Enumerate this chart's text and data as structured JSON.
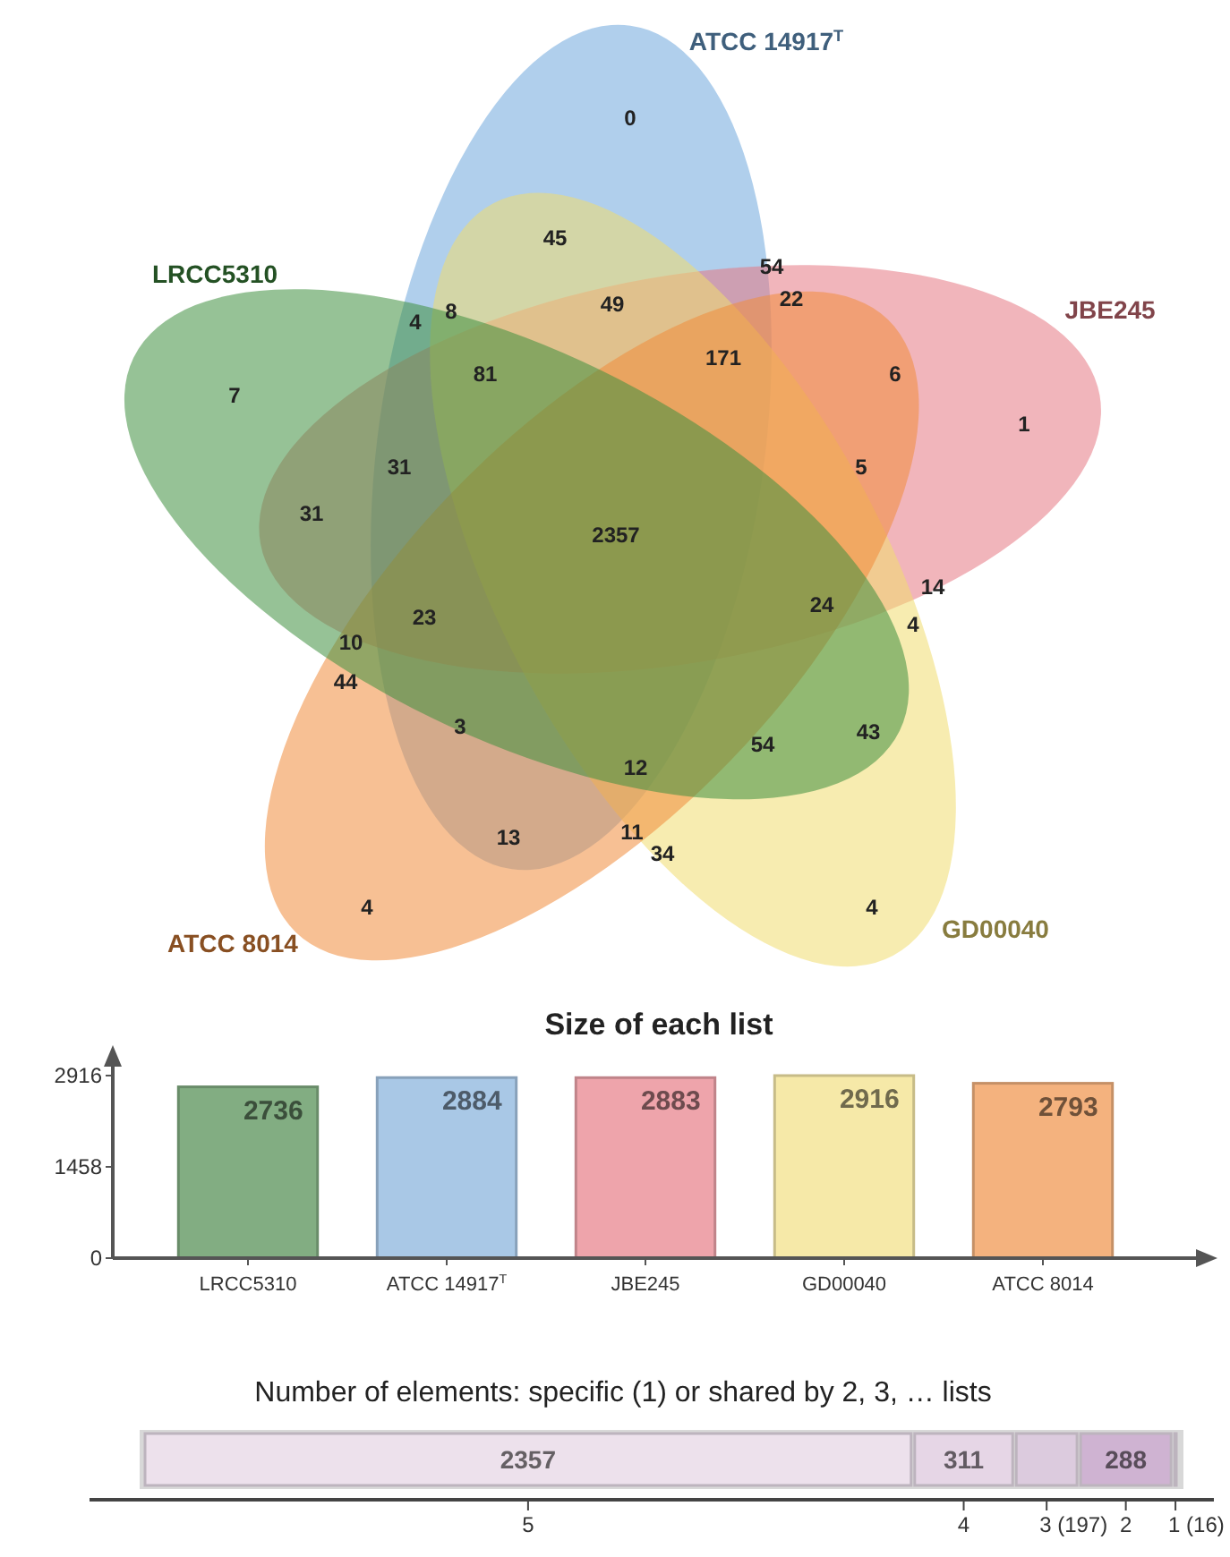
{
  "chart_data": [
    {
      "type": "other",
      "categories": [
        "ATCC 14917$^{T}$",
        "JBE245",
        "GD00040",
        "ATCC 8014",
        "LRCC5310"
      ],
      "colors": [
        "#6fa8dc",
        "#e57983",
        "#f0dc70",
        "#f08c3c",
        "#3f8f3f"
      ],
      "annotations": [
        "0",
        "45",
        "54",
        "22",
        "4",
        "8",
        "49",
        "81",
        "171",
        "6",
        "7",
        "1",
        "31",
        "5",
        "31",
        "2357",
        "23",
        "24",
        "14",
        "4",
        "10",
        "44",
        "3",
        "12",
        "54",
        "43",
        "13",
        "11",
        "34",
        "4",
        "4"
      ]
    },
    {
      "type": "bar",
      "title": "Size of each list",
      "categories": [
        "LRCC5310",
        "ATCC 14917$^{T}$",
        "JBE245",
        "GD00040",
        "ATCC 8014"
      ],
      "values": [
        2736,
        2884,
        2883,
        2916,
        2793
      ],
      "colors": [
        "#82ad82",
        "#a9c8e6",
        "#eea4ab",
        "#f6e9a8",
        "#f4b27e"
      ],
      "ylim": [
        0,
        2916
      ],
      "yticks": [
        0,
        1458,
        2916
      ],
      "data_labels": true
    },
    {
      "type": "bar",
      "title": "Number of elements: specific (1) or shared by 2, 3, … lists",
      "orientation": "horizontal",
      "stacked": true,
      "categories": [
        null
      ],
      "series": [
        {
          "name": "5",
          "color": "#ede1ec",
          "values": [
            2357
          ],
          "value_labels": [
            "2357"
          ]
        },
        {
          "name": "4",
          "color": "#e6d6e6",
          "values": [
            311
          ],
          "value_labels": [
            "311"
          ]
        },
        {
          "name": "3 (197)",
          "color": "#dccbde",
          "values": [
            197
          ],
          "value_labels": [
            null
          ]
        },
        {
          "name": "2",
          "color": "#cfb3d2",
          "values": [
            288
          ],
          "value_labels": [
            "288"
          ]
        },
        {
          "name": "1 (16)",
          "color": "#c9b4cd",
          "values": [
            16
          ],
          "value_labels": [
            null
          ]
        }
      ]
    }
  ]
}
